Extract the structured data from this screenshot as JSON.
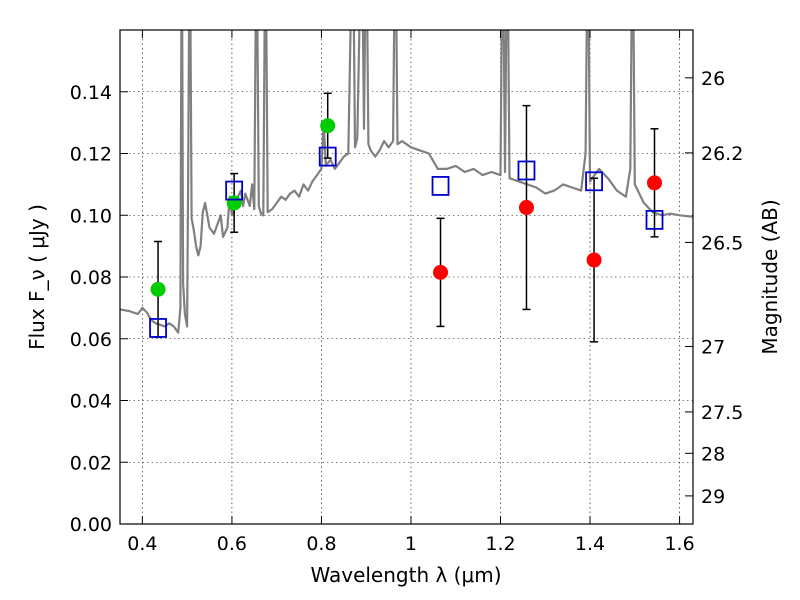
{
  "chart_data": {
    "type": "scatter",
    "title": "",
    "xlabel": "Wavelength  λ (μm)",
    "ylabel": "Flux  F_ν  ( μJy )",
    "ylabel2": "Magnitude (AB)",
    "xlim": [
      0.35,
      1.63
    ],
    "ylim": [
      0.0,
      0.16
    ],
    "grid": true,
    "xticks": [
      {
        "value": 0.4,
        "label": "0.4"
      },
      {
        "value": 0.6,
        "label": "0.6"
      },
      {
        "value": 0.8,
        "label": "0.8"
      },
      {
        "value": 1.0,
        "label": "1"
      },
      {
        "value": 1.2,
        "label": "1.2"
      },
      {
        "value": 1.4,
        "label": "1.4"
      },
      {
        "value": 1.6,
        "label": "1.6"
      }
    ],
    "yticks": [
      {
        "value": 0.0,
        "label": "0.00"
      },
      {
        "value": 0.02,
        "label": "0.02"
      },
      {
        "value": 0.04,
        "label": "0.04"
      },
      {
        "value": 0.06,
        "label": "0.06"
      },
      {
        "value": 0.08,
        "label": "0.08"
      },
      {
        "value": 0.1,
        "label": "0.10"
      },
      {
        "value": 0.12,
        "label": "0.12"
      },
      {
        "value": 0.14,
        "label": "0.14"
      }
    ],
    "magticks": [
      {
        "label": "26",
        "value": 0.1445
      },
      {
        "label": "26.2",
        "value": 0.1202
      },
      {
        "label": "26.5",
        "value": 0.0912
      },
      {
        "label": "27",
        "value": 0.0575
      },
      {
        "label": "27.5",
        "value": 0.0363
      },
      {
        "label": "28",
        "value": 0.0229
      },
      {
        "label": "29",
        "value": 0.0091
      }
    ],
    "series": [
      {
        "marker": "circle",
        "color": "#00cc00",
        "points": [
          {
            "x": 0.435,
            "y": 0.076,
            "err": 0.0155
          },
          {
            "x": 0.605,
            "y": 0.104,
            "err": 0.0095
          },
          {
            "x": 0.814,
            "y": 0.129,
            "err": 0.0105
          }
        ]
      },
      {
        "marker": "circle",
        "color": "#ff0000",
        "points": [
          {
            "x": 1.066,
            "y": 0.0815,
            "err": 0.0175
          },
          {
            "x": 1.258,
            "y": 0.1025,
            "err": 0.033
          },
          {
            "x": 1.409,
            "y": 0.0855,
            "err": 0.0265
          },
          {
            "x": 1.544,
            "y": 0.1105,
            "err": 0.0175
          }
        ]
      },
      {
        "marker": "square-open",
        "color": "#0000cc",
        "points": [
          {
            "x": 0.435,
            "y": 0.0635
          },
          {
            "x": 0.605,
            "y": 0.108
          },
          {
            "x": 0.814,
            "y": 0.119
          },
          {
            "x": 1.066,
            "y": 0.1095
          },
          {
            "x": 1.258,
            "y": 0.1145
          },
          {
            "x": 1.409,
            "y": 0.111
          },
          {
            "x": 1.544,
            "y": 0.0985
          }
        ]
      }
    ],
    "spectrum": {
      "color": "#808080",
      "points": [
        [
          0.35,
          0.0695
        ],
        [
          0.37,
          0.069
        ],
        [
          0.39,
          0.068
        ],
        [
          0.4,
          0.07
        ],
        [
          0.41,
          0.0685
        ],
        [
          0.42,
          0.066
        ],
        [
          0.43,
          0.065
        ],
        [
          0.44,
          0.0645
        ],
        [
          0.45,
          0.064
        ],
        [
          0.46,
          0.065
        ],
        [
          0.47,
          0.064
        ],
        [
          0.48,
          0.062
        ],
        [
          0.485,
          0.07
        ],
        [
          0.488,
          0.2
        ],
        [
          0.491,
          0.078
        ],
        [
          0.495,
          0.068
        ],
        [
          0.5,
          0.064
        ],
        [
          0.502,
          0.105
        ],
        [
          0.506,
          0.2
        ],
        [
          0.51,
          0.099
        ],
        [
          0.515,
          0.095
        ],
        [
          0.52,
          0.09
        ],
        [
          0.525,
          0.087
        ],
        [
          0.53,
          0.09
        ],
        [
          0.535,
          0.101
        ],
        [
          0.54,
          0.104
        ],
        [
          0.545,
          0.1
        ],
        [
          0.55,
          0.096
        ],
        [
          0.56,
          0.094
        ],
        [
          0.57,
          0.098
        ],
        [
          0.575,
          0.1
        ],
        [
          0.58,
          0.093
        ],
        [
          0.59,
          0.096
        ],
        [
          0.595,
          0.106
        ],
        [
          0.6,
          0.1
        ],
        [
          0.61,
          0.105
        ],
        [
          0.62,
          0.108
        ],
        [
          0.625,
          0.103
        ],
        [
          0.63,
          0.107
        ],
        [
          0.64,
          0.103
        ],
        [
          0.645,
          0.11
        ],
        [
          0.65,
          0.102
        ],
        [
          0.655,
          0.2
        ],
        [
          0.66,
          0.103
        ],
        [
          0.665,
          0.1005
        ],
        [
          0.67,
          0.1
        ],
        [
          0.675,
          0.2
        ],
        [
          0.68,
          0.101
        ],
        [
          0.69,
          0.102
        ],
        [
          0.7,
          0.104
        ],
        [
          0.71,
          0.106
        ],
        [
          0.72,
          0.105
        ],
        [
          0.73,
          0.107
        ],
        [
          0.74,
          0.108
        ],
        [
          0.75,
          0.106
        ],
        [
          0.76,
          0.11
        ],
        [
          0.77,
          0.108
        ],
        [
          0.78,
          0.111
        ],
        [
          0.79,
          0.113
        ],
        [
          0.8,
          0.115
        ],
        [
          0.805,
          0.13
        ],
        [
          0.81,
          0.116
        ],
        [
          0.82,
          0.118
        ],
        [
          0.83,
          0.115
        ],
        [
          0.84,
          0.117
        ],
        [
          0.85,
          0.119
        ],
        [
          0.86,
          0.12
        ],
        [
          0.87,
          0.2
        ],
        [
          0.875,
          0.122
        ],
        [
          0.88,
          0.125
        ],
        [
          0.89,
          0.2
        ],
        [
          0.895,
          0.128
        ],
        [
          0.9,
          0.2
        ],
        [
          0.905,
          0.123
        ],
        [
          0.91,
          0.121
        ],
        [
          0.92,
          0.119
        ],
        [
          0.93,
          0.121
        ],
        [
          0.94,
          0.124
        ],
        [
          0.95,
          0.122
        ],
        [
          0.96,
          0.124
        ],
        [
          0.965,
          0.2
        ],
        [
          0.97,
          0.123
        ],
        [
          0.98,
          0.124
        ],
        [
          0.99,
          0.123
        ],
        [
          1.0,
          0.122
        ],
        [
          1.02,
          0.121
        ],
        [
          1.04,
          0.12
        ],
        [
          1.06,
          0.115
        ],
        [
          1.08,
          0.115
        ],
        [
          1.1,
          0.116
        ],
        [
          1.12,
          0.114
        ],
        [
          1.14,
          0.115
        ],
        [
          1.16,
          0.113
        ],
        [
          1.18,
          0.114
        ],
        [
          1.2,
          0.113
        ],
        [
          1.205,
          0.2
        ],
        [
          1.21,
          0.114
        ],
        [
          1.215,
          0.2
        ],
        [
          1.22,
          0.112
        ],
        [
          1.24,
          0.111
        ],
        [
          1.26,
          0.11
        ],
        [
          1.28,
          0.109
        ],
        [
          1.3,
          0.107
        ],
        [
          1.32,
          0.108
        ],
        [
          1.34,
          0.11
        ],
        [
          1.36,
          0.109
        ],
        [
          1.38,
          0.108
        ],
        [
          1.39,
          0.12
        ],
        [
          1.395,
          0.2
        ],
        [
          1.4,
          0.111
        ],
        [
          1.42,
          0.115
        ],
        [
          1.44,
          0.112
        ],
        [
          1.46,
          0.108
        ],
        [
          1.48,
          0.106
        ],
        [
          1.49,
          0.115
        ],
        [
          1.495,
          0.2
        ],
        [
          1.5,
          0.11
        ],
        [
          1.52,
          0.104
        ],
        [
          1.54,
          0.101
        ],
        [
          1.56,
          0.1
        ],
        [
          1.58,
          0.1005
        ],
        [
          1.6,
          0.1
        ],
        [
          1.63,
          0.0995
        ]
      ]
    }
  }
}
